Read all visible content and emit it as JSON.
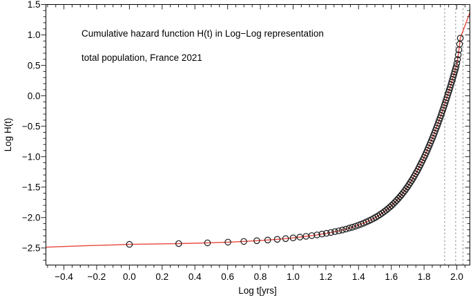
{
  "chart_data": {
    "type": "scatter",
    "title": "Cumulative hazard function H(t) in Log−Log representation",
    "subtitle": "total population, France 2021",
    "xlabel": "Log t[yrs]",
    "ylabel": "Log H(t)",
    "xlim": [
      -0.51,
      2.08
    ],
    "ylim": [
      -2.78,
      1.5
    ],
    "grid": false,
    "legend": false,
    "x_axis": {
      "tick_values": [
        -0.4,
        -0.2,
        0.0,
        0.2,
        0.4,
        0.6,
        0.8,
        1.0,
        1.2,
        1.4,
        1.6,
        1.8,
        2.0
      ],
      "tick_labels": [
        "−0.4",
        "−0.2",
        "0.0",
        "0.2",
        "0.4",
        "0.6",
        "0.8",
        "1.0",
        "1.2",
        "1.4",
        "1.6",
        "1.8",
        "2.0"
      ],
      "minor_step": 0.05,
      "major_step": 0.2
    },
    "y_axis": {
      "tick_values": [
        1.5,
        1.0,
        0.5,
        0.0,
        -0.5,
        -1.0,
        -1.5,
        -2.0,
        -2.5
      ],
      "tick_labels": [
        "1.5",
        "1.0",
        "0.5",
        "0.0",
        "−0.5",
        "−1.0",
        "−1.5",
        "−2.0",
        "−2.5"
      ],
      "minor_step": 0.1,
      "major_step": 0.5
    },
    "series": [
      {
        "name": "cumulative-hazard-observed",
        "marker": "open-circle",
        "marker_color": "#1a1a1a",
        "x_is_log10_of_age": true,
        "ages": [
          1,
          2,
          3,
          4,
          5,
          6,
          7,
          8,
          9,
          10,
          11,
          12,
          13,
          14,
          15,
          16,
          17,
          18,
          19,
          20,
          21,
          22,
          23,
          24,
          25,
          26,
          27,
          28,
          29,
          30,
          31,
          32,
          33,
          34,
          35,
          36,
          37,
          38,
          39,
          40,
          41,
          42,
          43,
          44,
          45,
          46,
          47,
          48,
          49,
          50,
          51,
          52,
          53,
          54,
          55,
          56,
          57,
          58,
          59,
          60,
          61,
          62,
          63,
          64,
          65,
          66,
          67,
          68,
          69,
          70,
          71,
          72,
          73,
          74,
          75,
          76,
          77,
          78,
          79,
          80,
          81,
          82,
          83,
          84,
          85,
          86,
          87,
          88,
          89,
          90,
          91,
          92,
          93,
          94,
          95,
          96,
          97,
          98,
          99,
          100,
          101,
          102,
          103,
          104,
          105
        ],
        "H": [
          0.00363,
          0.00373,
          0.00384,
          0.00394,
          0.00405,
          0.00416,
          0.00427,
          0.00439,
          0.00451,
          0.00464,
          0.00477,
          0.00491,
          0.00505,
          0.00519,
          0.00535,
          0.00551,
          0.00568,
          0.00586,
          0.00605,
          0.00625,
          0.00647,
          0.0067,
          0.00694,
          0.0072,
          0.00748,
          0.00778,
          0.0081,
          0.00845,
          0.00882,
          0.00923,
          0.00966,
          0.01014,
          0.01065,
          0.01121,
          0.01182,
          0.01249,
          0.01321,
          0.014,
          0.01486,
          0.01581,
          0.01684,
          0.01797,
          0.01921,
          0.02057,
          0.02206,
          0.0237,
          0.0255,
          0.02747,
          0.02964,
          0.03202,
          0.03464,
          0.03752,
          0.04069,
          0.04418,
          0.04802,
          0.05224,
          0.0569,
          0.06202,
          0.06766,
          0.07388,
          0.08073,
          0.08827,
          0.09658,
          0.10574,
          0.11584,
          0.12697,
          0.13923,
          0.15275,
          0.16765,
          0.18408,
          0.20219,
          0.22216,
          0.24418,
          0.26845,
          0.29522,
          0.32473,
          0.35727,
          0.39316,
          0.43273,
          0.47637,
          0.5245,
          0.57757,
          0.6361,
          0.70064,
          0.77182,
          0.85033,
          0.93691,
          1.03239,
          1.1377,
          1.25385,
          1.38194,
          1.52321,
          1.67902,
          1.85087,
          2.0404,
          2.24943,
          2.47998,
          2.73426,
          3.01472,
          3.4,
          3.95,
          4.7,
          5.7,
          7.05,
          8.85
        ]
      }
    ],
    "fit": {
      "name": "model-fit-line",
      "color": "#e8453c",
      "left_extension": [
        [
          -0.51,
          -2.487
        ],
        [
          -0.3,
          -2.465
        ],
        [
          -0.1,
          -2.45
        ],
        [
          0.0,
          -2.44
        ]
      ],
      "right_extension": [
        [
          2.035,
          1.045
        ],
        [
          2.06,
          1.225
        ],
        [
          2.081,
          1.375
        ]
      ]
    },
    "reference_lines": {
      "style": "dashed-vertical",
      "color": "#8a8a8a",
      "logt": [
        1.926,
        1.993,
        2.038
      ]
    }
  }
}
